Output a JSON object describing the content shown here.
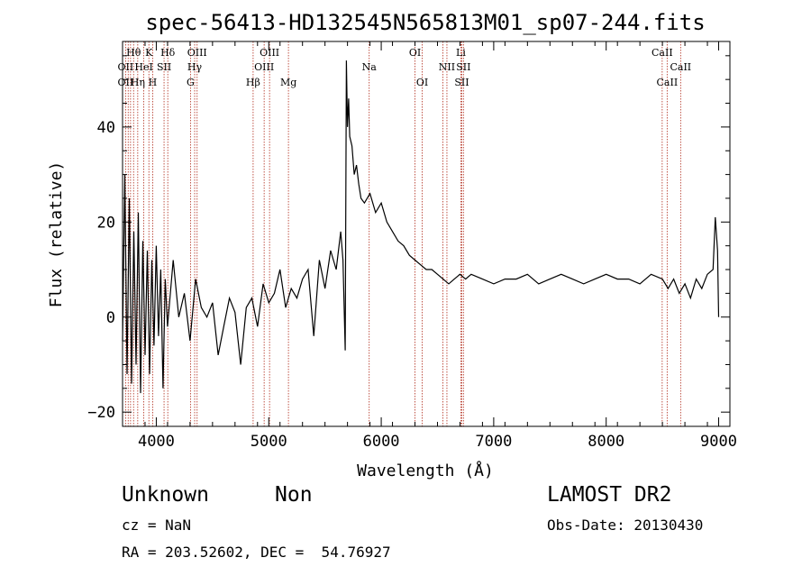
{
  "chart_data": {
    "type": "line",
    "title": "spec-56413-HD132545N565813M01_sp07-244.fits",
    "xlabel": "Wavelength (Å)",
    "ylabel": "Flux (relative)",
    "xlim": [
      3700,
      9100
    ],
    "ylim": [
      -23,
      58
    ],
    "x_ticks": [
      4000,
      5000,
      6000,
      7000,
      8000,
      9000
    ],
    "y_ticks": [
      -20,
      0,
      20,
      40
    ],
    "grid": false,
    "series": [
      {
        "x": [
          3700,
          3720,
          3740,
          3760,
          3780,
          3800,
          3820,
          3840,
          3860,
          3880,
          3900,
          3920,
          3940,
          3960,
          3980,
          4000,
          4020,
          4040,
          4060,
          4080,
          4100,
          4150,
          4200,
          4250,
          4300,
          4350,
          4400,
          4450,
          4500,
          4550,
          4600,
          4650,
          4700,
          4750,
          4800,
          4850,
          4900,
          4950,
          5000,
          5050,
          5100,
          5150,
          5200,
          5250,
          5300,
          5350,
          5400,
          5450,
          5500,
          5550,
          5600,
          5640,
          5660,
          5680,
          5690,
          5700,
          5710,
          5720,
          5740,
          5760,
          5780,
          5800,
          5820,
          5850,
          5900,
          5950,
          6000,
          6050,
          6100,
          6150,
          6200,
          6250,
          6300,
          6350,
          6400,
          6450,
          6500,
          6550,
          6600,
          6650,
          6700,
          6750,
          6800,
          6900,
          7000,
          7100,
          7200,
          7300,
          7400,
          7500,
          7600,
          7700,
          7800,
          7900,
          8000,
          8100,
          8200,
          8300,
          8400,
          8500,
          8550,
          8600,
          8650,
          8700,
          8750,
          8800,
          8850,
          8900,
          8950,
          8970,
          8990,
          9000
        ],
        "y": [
          -5,
          30,
          -12,
          25,
          -14,
          18,
          -10,
          22,
          -16,
          16,
          -8,
          14,
          -12,
          12,
          -6,
          15,
          -4,
          10,
          -15,
          8,
          -2,
          12,
          0,
          5,
          -5,
          8,
          2,
          0,
          3,
          -8,
          -2,
          4,
          1,
          -10,
          2,
          4,
          -2,
          7,
          3,
          5,
          10,
          2,
          6,
          4,
          8,
          10,
          -4,
          12,
          6,
          14,
          10,
          18,
          12,
          -7,
          54,
          40,
          46,
          38,
          36,
          30,
          32,
          28,
          25,
          24,
          26,
          22,
          24,
          20,
          18,
          16,
          15,
          13,
          12,
          11,
          10,
          10,
          9,
          8,
          7,
          8,
          9,
          8,
          9,
          8,
          7,
          8,
          8,
          9,
          7,
          8,
          9,
          8,
          7,
          8,
          9,
          8,
          8,
          7,
          9,
          8,
          6,
          8,
          5,
          7,
          4,
          8,
          6,
          9,
          10,
          21,
          14,
          0
        ]
      }
    ],
    "line_labels": [
      {
        "text": "Hθ",
        "x": 3798,
        "row": 1
      },
      {
        "text": "K",
        "x": 3934,
        "row": 1
      },
      {
        "text": "Hδ",
        "x": 4102,
        "row": 1
      },
      {
        "text": "OIII",
        "x": 4363,
        "row": 1
      },
      {
        "text": "OIII",
        "x": 5007,
        "row": 1
      },
      {
        "text": "OI",
        "x": 6300,
        "row": 1
      },
      {
        "text": "Li",
        "x": 6708,
        "row": 1
      },
      {
        "text": "CaII",
        "x": 8498,
        "row": 1
      },
      {
        "text": "OII",
        "x": 3727,
        "row": 2
      },
      {
        "text": "HeI",
        "x": 3889,
        "row": 2
      },
      {
        "text": "SII",
        "x": 4069,
        "row": 2
      },
      {
        "text": "Hγ",
        "x": 4341,
        "row": 2
      },
      {
        "text": "OIII",
        "x": 4959,
        "row": 2
      },
      {
        "text": "Na",
        "x": 5893,
        "row": 2
      },
      {
        "text": "NII",
        "x": 6584,
        "row": 2
      },
      {
        "text": "SII",
        "x": 6731,
        "row": 2
      },
      {
        "text": "CaII",
        "x": 8662,
        "row": 2
      },
      {
        "text": "OII",
        "x": 3727,
        "row": 3
      },
      {
        "text": "Hη",
        "x": 3835,
        "row": 3
      },
      {
        "text": "H",
        "x": 3968,
        "row": 3
      },
      {
        "text": "G",
        "x": 4304,
        "row": 3
      },
      {
        "text": "Hβ",
        "x": 4861,
        "row": 3
      },
      {
        "text": "Mg",
        "x": 5175,
        "row": 3
      },
      {
        "text": "OI",
        "x": 6364,
        "row": 3
      },
      {
        "text": "SII",
        "x": 6716,
        "row": 3
      },
      {
        "text": "CaII",
        "x": 8542,
        "row": 3
      }
    ],
    "line_markers": [
      3727,
      3750,
      3771,
      3798,
      3835,
      3889,
      3934,
      3968,
      4069,
      4102,
      4304,
      4341,
      4363,
      4861,
      4959,
      5007,
      5175,
      5893,
      6300,
      6364,
      6548,
      6584,
      6708,
      6716,
      6731,
      8498,
      8542,
      8662
    ]
  },
  "info": {
    "class": "Unknown",
    "subclass": "Non",
    "survey": "LAMOST DR2",
    "cz": "cz = NaN",
    "obs_date": "Obs-Date: 20130430",
    "radec": "RA = 203.52602, DEC =  54.76927"
  },
  "colors": {
    "line_marker": "#b02a1a",
    "spectrum": "#000000"
  }
}
